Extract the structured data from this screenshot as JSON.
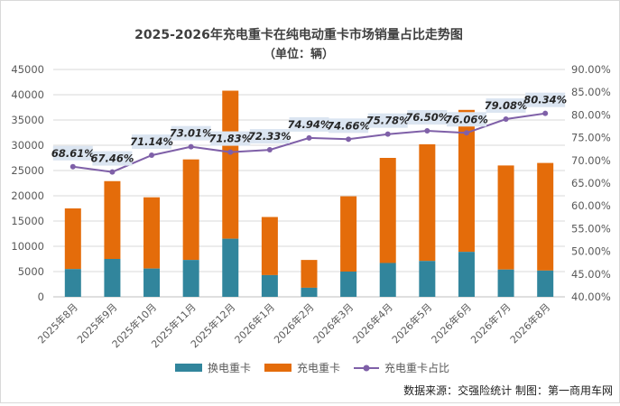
{
  "chart_data": {
    "type": "bar",
    "stacked": true,
    "title": "2025-2026年充电重卡在纯电动重卡市场销量占比走势图",
    "subtitle": "（单位：辆）",
    "categories": [
      "2025年8月",
      "2025年9月",
      "2025年10月",
      "2025年11月",
      "2025年12月",
      "2026年1月",
      "2026年2月",
      "2026年3月",
      "2026年4月",
      "2026年5月",
      "2026年6月",
      "2026年7月",
      "2026年8月"
    ],
    "series": [
      {
        "name": "换电重卡",
        "type": "bar",
        "axis": "left",
        "color": "#31859c",
        "values": [
          5500,
          7500,
          5600,
          7300,
          11500,
          4300,
          1800,
          5000,
          6700,
          7100,
          8900,
          5400,
          5200
        ]
      },
      {
        "name": "充电重卡",
        "type": "bar",
        "axis": "left",
        "color": "#e46c0a",
        "values": [
          12000,
          15400,
          14100,
          19900,
          29300,
          11500,
          5500,
          14900,
          20800,
          23100,
          28100,
          20600,
          21300
        ]
      },
      {
        "name": "充电重卡占比",
        "type": "line",
        "axis": "right",
        "color": "#7f60a8",
        "values": [
          68.61,
          67.46,
          71.14,
          73.01,
          71.83,
          72.33,
          74.94,
          74.66,
          75.78,
          76.5,
          76.06,
          79.08,
          80.34
        ],
        "labels": [
          "68.61%",
          "67.46%",
          "71.14%",
          "73.01%",
          "71.83%",
          "72.33%",
          "74.94%",
          "74.66%",
          "75.78%",
          "76.50%",
          "76.06%",
          "79.08%",
          "80.34%"
        ]
      }
    ],
    "y_left": {
      "min": 0,
      "max": 45000,
      "step": 5000,
      "ticks": [
        "0",
        "5000",
        "10000",
        "15000",
        "20000",
        "25000",
        "30000",
        "35000",
        "40000",
        "45000"
      ]
    },
    "y_right": {
      "min": 40,
      "max": 90,
      "step": 5,
      "ticks": [
        "40.00%",
        "45.00%",
        "50.00%",
        "55.00%",
        "60.00%",
        "65.00%",
        "70.00%",
        "75.00%",
        "80.00%",
        "85.00%",
        "90.00%"
      ]
    },
    "grid": true,
    "legend": "bottom"
  },
  "footer": "数据来源：交强险统计   制图：第一商用车网"
}
